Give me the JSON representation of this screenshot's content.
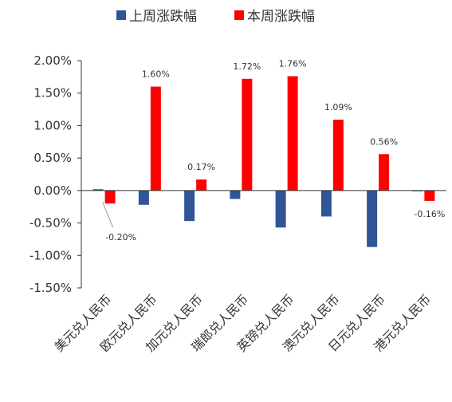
{
  "chart_data": {
    "type": "bar",
    "title": "",
    "xlabel": "",
    "ylabel": "",
    "categories": [
      "美元兑人民币",
      "欧元兑人民币",
      "加元兑人民币",
      "瑞郎兑人民币",
      "英镑兑人民币",
      "澳元兑人民币",
      "日元兑人民币",
      "港元兑人民币"
    ],
    "series": [
      {
        "name": "上周涨跌幅",
        "color": "#2F5597",
        "values": [
          0.02,
          -0.22,
          -0.47,
          -0.13,
          -0.57,
          -0.4,
          -0.87,
          -0.01
        ]
      },
      {
        "name": "本周涨跌幅",
        "color": "#FF0000",
        "values": [
          -0.2,
          1.6,
          0.17,
          1.72,
          1.76,
          1.09,
          0.56,
          -0.16
        ],
        "labels": [
          "-0.20%",
          "1.60%",
          "0.17%",
          "1.72%",
          "1.76%",
          "1.09%",
          "0.56%",
          "-0.16%"
        ]
      }
    ],
    "y_ticks": [
      "2.00%",
      "1.50%",
      "1.00%",
      "0.50%",
      "0.00%",
      "-0.50%",
      "-1.00%",
      "-1.50%"
    ],
    "ylim": [
      -1.5,
      2.0
    ],
    "legend_position": "top",
    "grid": false
  }
}
